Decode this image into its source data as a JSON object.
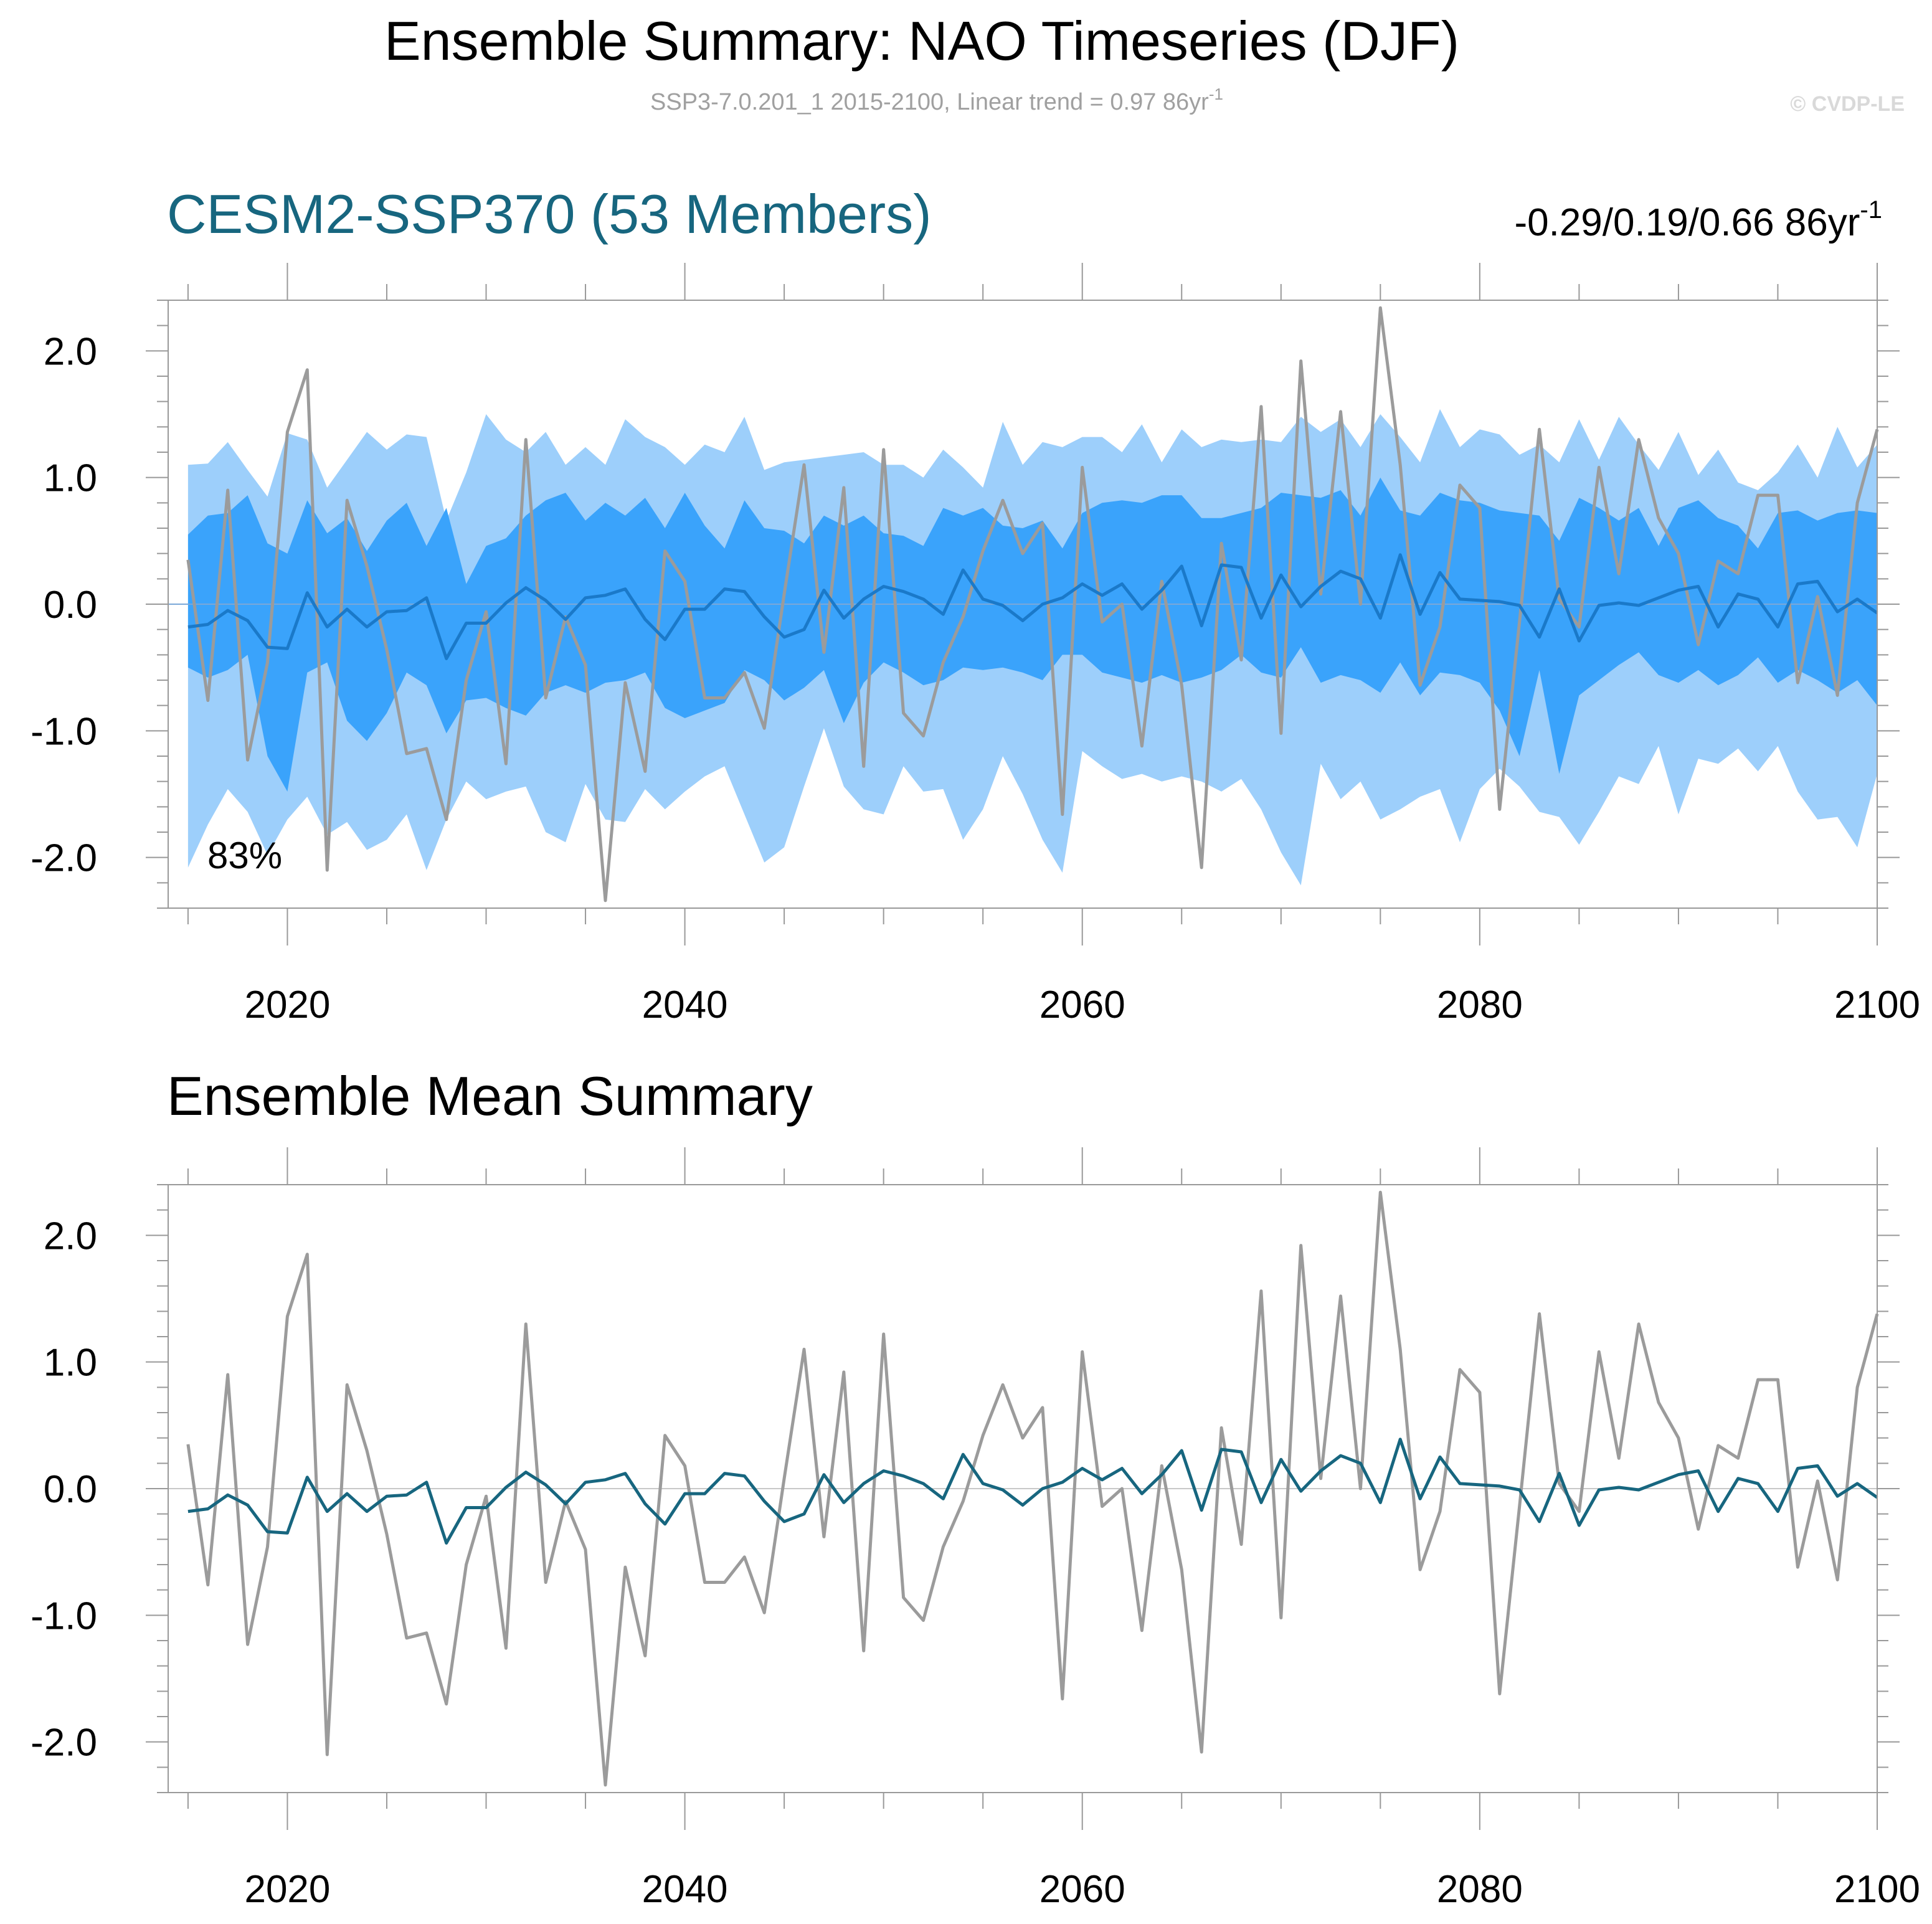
{
  "figure": {
    "title": "Ensemble Summary: NAO Timeseries (DJF)",
    "subtitle": "SSP3-7.0.201_1 2015-2100, Linear trend = 0.97 86yr",
    "subtitle_sup": "-1",
    "watermark": "© CVDP-LE"
  },
  "colors": {
    "outer_band": "#9dcffb",
    "inner_band": "#3aa3fb",
    "ens_mean_top": "#1a79c9",
    "ens_mean_bottom": "#17667f",
    "obs": "#9b9b9b",
    "panel_title": "#17667f",
    "frame": "#999999"
  },
  "panels": {
    "top": {
      "title": "CESM2-SSP370 (53 Members)",
      "right_text": "-0.29/0.19/0.66 86yr",
      "right_sup": "-1",
      "percent_label": "83%"
    },
    "bottom": {
      "title": "Ensemble Mean Summary"
    }
  },
  "chart_data": [
    {
      "type": "area",
      "panel": "top",
      "title": "CESM2-SSP370 (53 Members)",
      "x_start": 2015,
      "x_end": 2100,
      "xlim": [
        2014,
        2100
      ],
      "ylim": [
        -2.4,
        2.4
      ],
      "x_ticks": [
        "2020",
        "2040",
        "2060",
        "2080",
        "2100"
      ],
      "y_ticks": [
        "2.0",
        "1.0",
        "0.0",
        "-1.0",
        "-2.0"
      ],
      "y_tick_values": [
        2.0,
        1.0,
        0.0,
        -1.0,
        -2.0
      ],
      "series": [
        {
          "name": "ensemble 2.5-97.5% range (upper)",
          "values": [
            1.1,
            1.11,
            1.28,
            1.06,
            0.85,
            1.35,
            1.3,
            0.92,
            1.14,
            1.36,
            1.22,
            1.34,
            1.32,
            0.66,
            1.04,
            1.5,
            1.3,
            1.2,
            1.36,
            1.1,
            1.24,
            1.1,
            1.46,
            1.32,
            1.24,
            1.1,
            1.26,
            1.2,
            1.48,
            1.06,
            1.12,
            1.14,
            1.16,
            1.18,
            1.2,
            1.1,
            1.1,
            1.0,
            1.22,
            1.08,
            0.92,
            1.44,
            1.1,
            1.28,
            1.24,
            1.32,
            1.32,
            1.2,
            1.42,
            1.12,
            1.38,
            1.24,
            1.3,
            1.28,
            1.3,
            1.28,
            1.48,
            1.36,
            1.46,
            1.24,
            1.5,
            1.32,
            1.12,
            1.54,
            1.24,
            1.38,
            1.34,
            1.18,
            1.26,
            1.12,
            1.46,
            1.14,
            1.48,
            1.26,
            1.06,
            1.36,
            1.02,
            1.22,
            0.96,
            0.9,
            1.04,
            1.26,
            1.0,
            1.4,
            1.08,
            1.26
          ]
        },
        {
          "name": "ensemble 16-84% range (upper)",
          "values": [
            0.55,
            0.7,
            0.72,
            0.86,
            0.48,
            0.4,
            0.82,
            0.56,
            0.68,
            0.42,
            0.66,
            0.8,
            0.46,
            0.76,
            0.16,
            0.46,
            0.52,
            0.7,
            0.82,
            0.88,
            0.66,
            0.8,
            0.7,
            0.84,
            0.6,
            0.88,
            0.62,
            0.44,
            0.82,
            0.6,
            0.58,
            0.48,
            0.7,
            0.62,
            0.7,
            0.56,
            0.54,
            0.46,
            0.76,
            0.7,
            0.76,
            0.62,
            0.6,
            0.66,
            0.44,
            0.72,
            0.8,
            0.82,
            0.8,
            0.86,
            0.86,
            0.68,
            0.68,
            0.72,
            0.76,
            0.88,
            0.86,
            0.84,
            0.9,
            0.7,
            1.0,
            0.74,
            0.7,
            0.88,
            0.82,
            0.8,
            0.74,
            0.72,
            0.7,
            0.5,
            0.84,
            0.76,
            0.66,
            0.76,
            0.46,
            0.76,
            0.82,
            0.68,
            0.62,
            0.44,
            0.72,
            0.74,
            0.66,
            0.72,
            0.74,
            0.72
          ]
        },
        {
          "name": "ensemble mean",
          "values": [
            -0.18,
            -0.16,
            -0.05,
            -0.13,
            -0.34,
            -0.35,
            0.09,
            -0.18,
            -0.04,
            -0.18,
            -0.06,
            -0.05,
            0.05,
            -0.43,
            -0.15,
            -0.15,
            0.01,
            0.13,
            0.03,
            -0.12,
            0.05,
            0.07,
            0.12,
            -0.12,
            -0.28,
            -0.04,
            -0.04,
            0.12,
            0.1,
            -0.1,
            -0.26,
            -0.2,
            0.11,
            -0.11,
            0.04,
            0.14,
            0.1,
            0.04,
            -0.08,
            0.27,
            0.04,
            -0.01,
            -0.13,
            0.0,
            0.05,
            0.16,
            0.07,
            0.16,
            -0.04,
            0.11,
            0.3,
            -0.17,
            0.31,
            0.29,
            -0.11,
            0.23,
            -0.02,
            0.14,
            0.26,
            0.2,
            -0.11,
            0.39,
            -0.08,
            0.25,
            0.04,
            0.03,
            0.02,
            -0.01,
            -0.26,
            0.12,
            -0.29,
            -0.01,
            0.01,
            -0.01,
            0.05,
            0.11,
            0.14,
            -0.18,
            0.08,
            0.04,
            -0.18,
            0.16,
            0.18,
            -0.06,
            0.04,
            -0.07
          ]
        },
        {
          "name": "ensemble 16-84% range (lower)",
          "values": [
            -0.5,
            -0.58,
            -0.52,
            -0.4,
            -1.2,
            -1.48,
            -0.54,
            -0.46,
            -0.92,
            -1.08,
            -0.86,
            -0.54,
            -0.64,
            -1.02,
            -0.76,
            -0.74,
            -0.82,
            -0.88,
            -0.7,
            -0.64,
            -0.7,
            -0.62,
            -0.6,
            -0.54,
            -0.82,
            -0.9,
            -0.84,
            -0.78,
            -0.52,
            -0.6,
            -0.76,
            -0.66,
            -0.52,
            -0.94,
            -0.62,
            -0.46,
            -0.54,
            -0.64,
            -0.6,
            -0.5,
            -0.52,
            -0.5,
            -0.54,
            -0.6,
            -0.4,
            -0.4,
            -0.54,
            -0.58,
            -0.62,
            -0.56,
            -0.62,
            -0.58,
            -0.52,
            -0.4,
            -0.54,
            -0.58,
            -0.34,
            -0.62,
            -0.56,
            -0.6,
            -0.7,
            -0.46,
            -0.72,
            -0.54,
            -0.56,
            -0.62,
            -0.84,
            -1.2,
            -0.52,
            -1.34,
            -0.72,
            -0.6,
            -0.48,
            -0.38,
            -0.56,
            -0.62,
            -0.52,
            -0.64,
            -0.56,
            -0.42,
            -0.62,
            -0.52,
            -0.6,
            -0.7,
            -0.6,
            -0.8
          ]
        },
        {
          "name": "ensemble 2.5-97.5% range (lower)",
          "values": [
            -2.08,
            -1.74,
            -1.46,
            -1.64,
            -1.98,
            -1.7,
            -1.52,
            -1.82,
            -1.72,
            -1.94,
            -1.86,
            -1.66,
            -2.1,
            -1.7,
            -1.4,
            -1.54,
            -1.48,
            -1.44,
            -1.8,
            -1.88,
            -1.42,
            -1.7,
            -1.72,
            -1.46,
            -1.62,
            -1.48,
            -1.36,
            -1.28,
            -1.66,
            -2.04,
            -1.92,
            -1.44,
            -0.98,
            -1.44,
            -1.62,
            -1.66,
            -1.28,
            -1.48,
            -1.46,
            -1.86,
            -1.62,
            -1.2,
            -1.5,
            -1.86,
            -2.12,
            -1.16,
            -1.28,
            -1.38,
            -1.34,
            -1.4,
            -1.36,
            -1.4,
            -1.48,
            -1.38,
            -1.62,
            -1.96,
            -2.22,
            -1.26,
            -1.54,
            -1.4,
            -1.7,
            -1.62,
            -1.52,
            -1.46,
            -1.88,
            -1.46,
            -1.3,
            -1.44,
            -1.64,
            -1.68,
            -1.9,
            -1.64,
            -1.36,
            -1.42,
            -1.12,
            -1.66,
            -1.22,
            -1.26,
            -1.14,
            -1.32,
            -1.12,
            -1.48,
            -1.7,
            -1.68,
            -1.92,
            -1.34
          ]
        },
        {
          "name": "observations",
          "values": [
            0.35,
            -0.76,
            0.9,
            -1.23,
            -0.46,
            1.36,
            1.85,
            -2.1,
            0.82,
            0.3,
            -0.36,
            -1.18,
            -1.14,
            -1.7,
            -0.6,
            -0.06,
            -1.26,
            1.3,
            -0.74,
            -0.1,
            -0.48,
            -2.34,
            -0.62,
            -1.32,
            0.42,
            0.18,
            -0.74,
            -0.74,
            -0.54,
            -0.98,
            0.08,
            1.1,
            -0.38,
            0.92,
            -1.28,
            1.22,
            -0.86,
            -1.04,
            -0.46,
            -0.1,
            0.42,
            0.82,
            0.4,
            0.64,
            -1.66,
            1.08,
            -0.14,
            0.0,
            -1.12,
            0.18,
            -0.64,
            -2.08,
            0.48,
            -0.44,
            1.56,
            -1.02,
            1.92,
            0.08,
            1.52,
            0.0,
            2.34,
            1.1,
            -0.64,
            -0.18,
            0.94,
            0.76,
            -1.62,
            -0.14,
            1.38,
            0.04,
            -0.18,
            1.08,
            0.24,
            1.3,
            0.68,
            0.4,
            -0.32,
            0.34,
            0.24,
            0.86,
            0.86,
            -0.62,
            0.06,
            -0.72,
            0.8,
            1.38
          ]
        }
      ]
    },
    {
      "type": "line",
      "panel": "bottom",
      "title": "Ensemble Mean Summary",
      "x_start": 2015,
      "x_end": 2100,
      "xlim": [
        2014,
        2100
      ],
      "ylim": [
        -2.4,
        2.4
      ],
      "x_ticks": [
        "2020",
        "2040",
        "2060",
        "2080",
        "2100"
      ],
      "y_ticks": [
        "2.0",
        "1.0",
        "0.0",
        "-1.0",
        "-2.0"
      ],
      "y_tick_values": [
        2.0,
        1.0,
        0.0,
        -1.0,
        -2.0
      ],
      "series": [
        {
          "name": "ensemble mean",
          "values": [
            -0.18,
            -0.16,
            -0.05,
            -0.13,
            -0.34,
            -0.35,
            0.09,
            -0.18,
            -0.04,
            -0.18,
            -0.06,
            -0.05,
            0.05,
            -0.43,
            -0.15,
            -0.15,
            0.01,
            0.13,
            0.03,
            -0.12,
            0.05,
            0.07,
            0.12,
            -0.12,
            -0.28,
            -0.04,
            -0.04,
            0.12,
            0.1,
            -0.1,
            -0.26,
            -0.2,
            0.11,
            -0.11,
            0.04,
            0.14,
            0.1,
            0.04,
            -0.08,
            0.27,
            0.04,
            -0.01,
            -0.13,
            0.0,
            0.05,
            0.16,
            0.07,
            0.16,
            -0.04,
            0.11,
            0.3,
            -0.17,
            0.31,
            0.29,
            -0.11,
            0.23,
            -0.02,
            0.14,
            0.26,
            0.2,
            -0.11,
            0.39,
            -0.08,
            0.25,
            0.04,
            0.03,
            0.02,
            -0.01,
            -0.26,
            0.12,
            -0.29,
            -0.01,
            0.01,
            -0.01,
            0.05,
            0.11,
            0.14,
            -0.18,
            0.08,
            0.04,
            -0.18,
            0.16,
            0.18,
            -0.06,
            0.04,
            -0.07
          ]
        },
        {
          "name": "observations",
          "values": [
            0.35,
            -0.76,
            0.9,
            -1.23,
            -0.46,
            1.36,
            1.85,
            -2.1,
            0.82,
            0.3,
            -0.36,
            -1.18,
            -1.14,
            -1.7,
            -0.6,
            -0.06,
            -1.26,
            1.3,
            -0.74,
            -0.1,
            -0.48,
            -2.34,
            -0.62,
            -1.32,
            0.42,
            0.18,
            -0.74,
            -0.74,
            -0.54,
            -0.98,
            0.08,
            1.1,
            -0.38,
            0.92,
            -1.28,
            1.22,
            -0.86,
            -1.04,
            -0.46,
            -0.1,
            0.42,
            0.82,
            0.4,
            0.64,
            -1.66,
            1.08,
            -0.14,
            0.0,
            -1.12,
            0.18,
            -0.64,
            -2.08,
            0.48,
            -0.44,
            1.56,
            -1.02,
            1.92,
            0.08,
            1.52,
            0.0,
            2.34,
            1.1,
            -0.64,
            -0.18,
            0.94,
            0.76,
            -1.62,
            -0.14,
            1.38,
            0.04,
            -0.18,
            1.08,
            0.24,
            1.3,
            0.68,
            0.4,
            -0.32,
            0.34,
            0.24,
            0.86,
            0.86,
            -0.62,
            0.06,
            -0.72,
            0.8,
            1.38
          ]
        }
      ]
    }
  ]
}
